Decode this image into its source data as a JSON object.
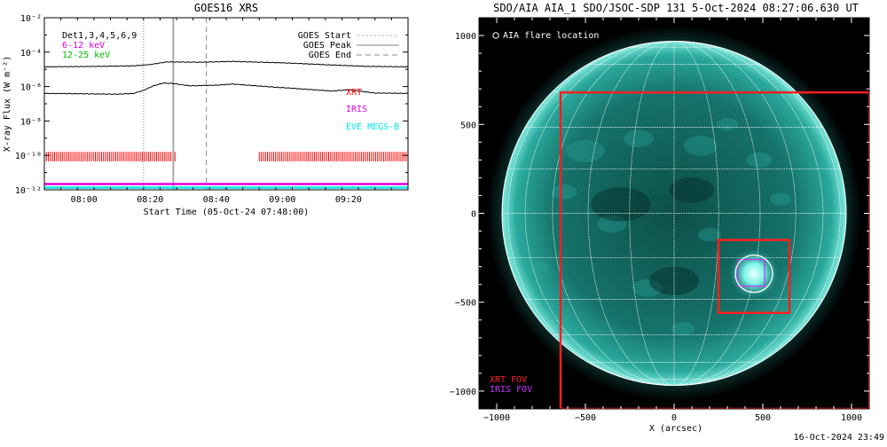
{
  "left_panel": {
    "title": "GOES16 XRS",
    "ylabel": "X-ray Flux (W m⁻²)",
    "xlabel": "Start Time (05-Oct-24 07:48:00)",
    "legend_top": [
      "GOES Start",
      "GOES Peak",
      "GOES End"
    ],
    "energy_labels": [
      "Det1,3,4,5,6,9",
      "6-12 keV",
      "12-25 keV"
    ],
    "instrument_labels": [
      "XRT",
      "IRIS",
      "EVE MEGS-B"
    ],
    "colors": {
      "xrt": "#ff0000",
      "iris": "#e000e0",
      "eve": "#00e8e8",
      "green": "#00c000",
      "magenta": "#e000e0"
    },
    "xtick_labels": [
      "08:00",
      "08:20",
      "08:40",
      "09:00",
      "09:20"
    ],
    "ytick_labels": [
      "10⁻¹²",
      "10⁻¹⁰",
      "10⁻⁸",
      "10⁻⁶",
      "10⁻⁴",
      "10⁻²"
    ]
  },
  "right_panel": {
    "title": "SDO/AIA AIA_1 SDO/JSOC-SDP 131  5-Oct-2024 08:27:06.630 UT",
    "legend": "AIA flare location",
    "xlabel": "X (arcsec)",
    "fov_labels": [
      "XRT FOV",
      "IRIS FOV"
    ],
    "xtick_labels": [
      "−1000",
      "−500",
      "0",
      "500",
      "1000"
    ],
    "ytick_labels": [
      "1000",
      "500",
      "0",
      "−500",
      "−1000"
    ],
    "colors": {
      "xrt_fov": "#ff2020",
      "iris_fov": "#cc33ff",
      "disk": "#1f8f86",
      "background": "#000000"
    }
  },
  "footer_timestamp": "16-Oct-2024 23:49",
  "chart_data": [
    {
      "type": "line",
      "title": "GOES16 XRS",
      "xlabel": "Start Time (05-Oct-24 07:48:00)",
      "ylabel": "X-ray Flux (W m⁻²)",
      "yscale": "log",
      "ylim": [
        1e-12,
        0.01
      ],
      "xlim": [
        "07:48",
        "09:38"
      ],
      "series": [
        {
          "name": "Det1,3,4,5,6,9",
          "x": [
            "07:48",
            "08:05",
            "08:15",
            "08:20",
            "08:25",
            "08:35",
            "08:45",
            "09:00",
            "09:15",
            "09:25",
            "09:38"
          ],
          "y": [
            1.4e-05,
            1.5e-05,
            1.6e-05,
            1.9e-05,
            2.7e-05,
            2.6e-05,
            2.9e-05,
            2.4e-05,
            1.8e-05,
            1.5e-05,
            1.4e-05
          ]
        },
        {
          "name": "Det1,3,4,5,6,9 (low)",
          "x": [
            "07:48",
            "08:00",
            "08:10",
            "08:15",
            "08:18",
            "08:21",
            "08:24",
            "08:27",
            "08:32",
            "08:40",
            "08:45",
            "08:55",
            "09:05",
            "09:15",
            "09:20",
            "09:28",
            "09:38"
          ],
          "y": [
            4e-07,
            3.8e-07,
            3.6e-07,
            4e-07,
            6e-07,
            1.1e-06,
            1.6e-06,
            1.5e-06,
            1.1e-06,
            1.2e-06,
            1.4e-06,
            1e-06,
            7.5e-07,
            5.5e-07,
            6.5e-07,
            4.2e-07,
            4e-07
          ]
        }
      ],
      "markers": {
        "goes_start": "08:18",
        "goes_peak": "08:27",
        "goes_end": "08:37"
      },
      "xrt_coverage": [
        [
          "07:48",
          "08:28"
        ],
        [
          "08:53",
          "09:38"
        ]
      ],
      "levels": {
        "iris": 1.4e-12,
        "eve": 1e-12
      },
      "legend": "top-right"
    },
    {
      "type": "image",
      "title": "SDO/AIA AIA_1 SDO/JSOC-SDP 131  5-Oct-2024 08:27:06.630 UT",
      "xlabel": "X (arcsec)",
      "xlim": [
        -1100,
        1100
      ],
      "ylim": [
        -1100,
        1100
      ],
      "solar_radius": 970,
      "flare_location": [
        450,
        -340
      ],
      "xrt_fov_large": {
        "x": [
          -640,
          1100
        ],
        "y": [
          -1100,
          680
        ]
      },
      "xrt_fov_small": {
        "x": [
          250,
          650
        ],
        "y": [
          -560,
          -150
        ]
      },
      "iris_fov": {
        "x": [
          360,
          510
        ],
        "y": [
          -410,
          -260
        ]
      }
    }
  ]
}
